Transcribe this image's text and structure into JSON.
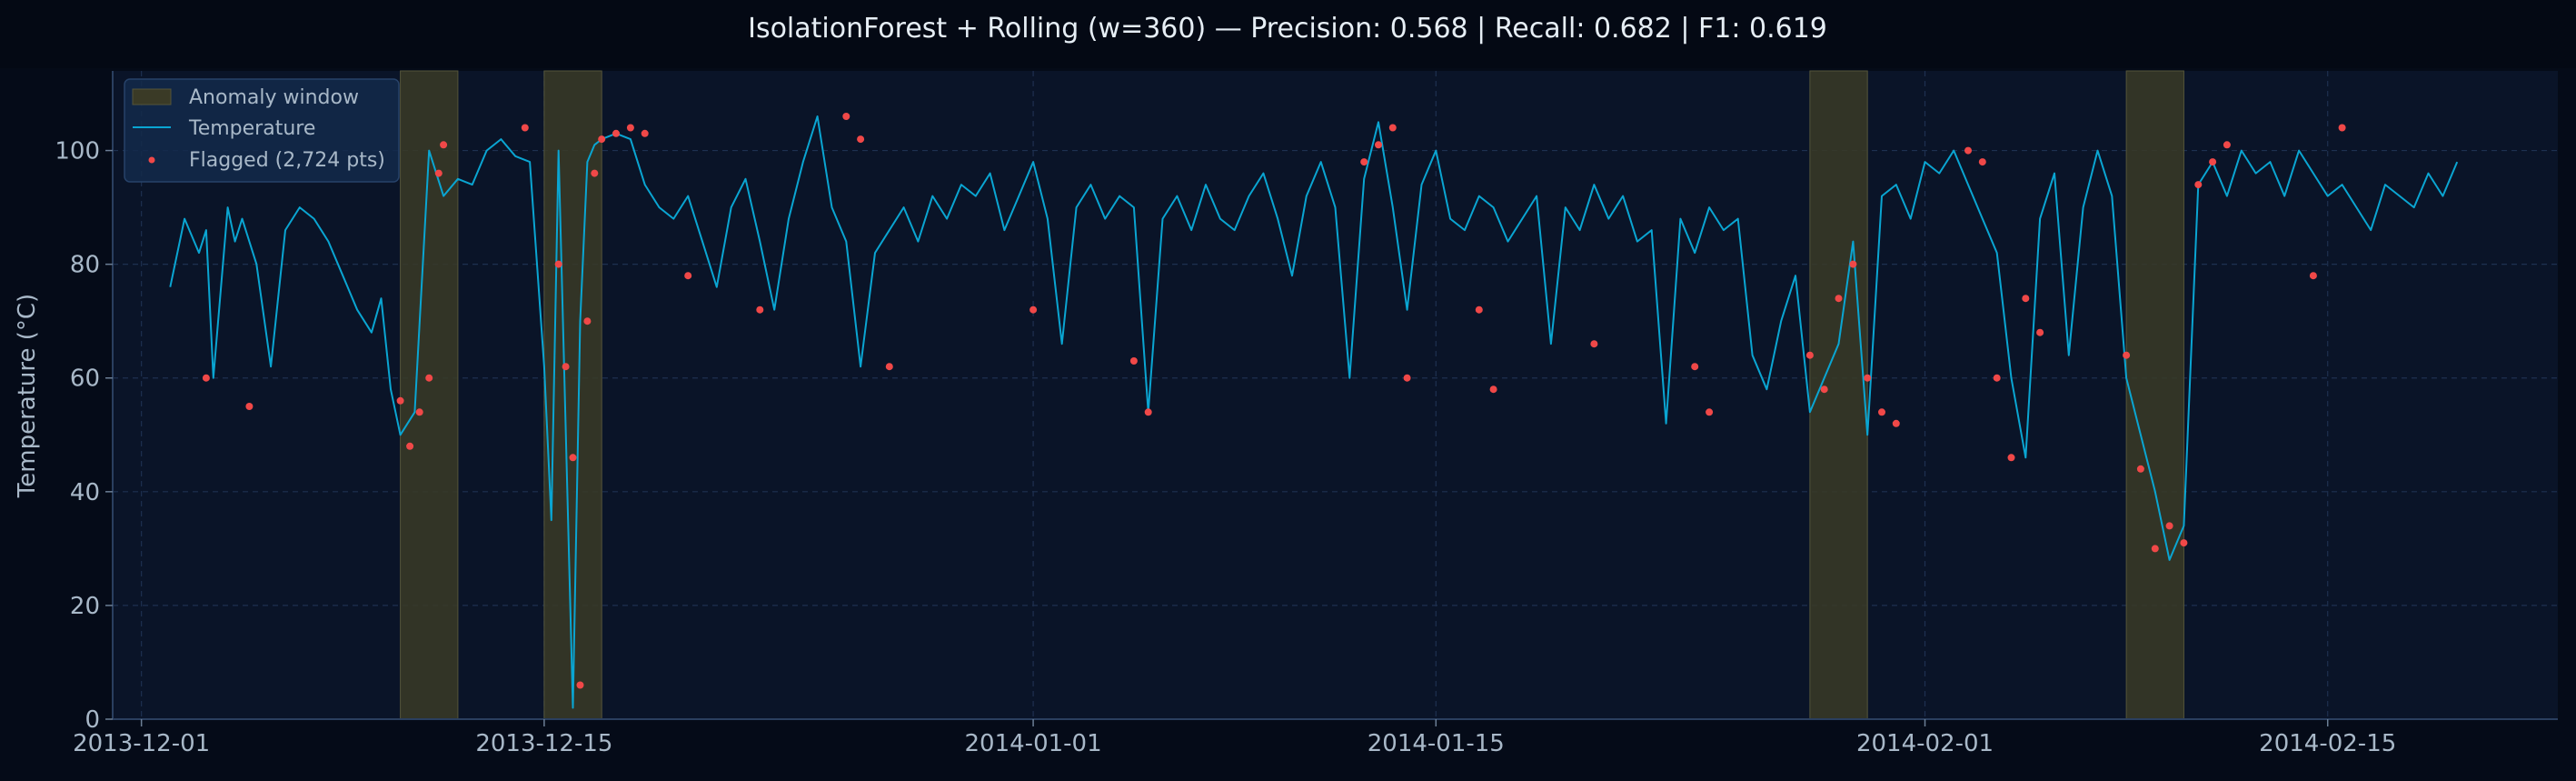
{
  "chart_data": {
    "type": "line",
    "title": "IsolationForest + Rolling (w=360)  —  Precision: 0.568  |  Recall: 0.682  |  F1: 0.619",
    "xlabel": "",
    "ylabel": "Temperature (°C)",
    "xlim": [
      "2013-11-30",
      "2014-02-23"
    ],
    "ylim": [
      0,
      114
    ],
    "x_ticks": [
      "2013-12-01",
      "2013-12-15",
      "2014-01-01",
      "2014-01-15",
      "2014-02-01",
      "2014-02-15"
    ],
    "y_ticks": [
      0,
      20,
      40,
      60,
      80,
      100
    ],
    "grid": true,
    "legend_position": "top-left",
    "legend": {
      "window": "Anomaly window",
      "line": "Temperature",
      "flagged": "Flagged (2,724 pts)"
    },
    "colors": {
      "background": "#050b18",
      "plot_background": "#0a1428",
      "temperature": "#0aa5d2",
      "flagged": "#f04848",
      "window_fill": "#3a3a26",
      "axis": "#2a3f5f",
      "tick_text": "#a8b8c8",
      "title_text": "#e6eef5"
    },
    "anomaly_windows": [
      [
        "2013-12-10",
        "2013-12-12"
      ],
      [
        "2013-12-15",
        "2013-12-17"
      ],
      [
        "2014-01-28",
        "2014-01-30"
      ],
      [
        "2014-02-08",
        "2014-02-10"
      ]
    ],
    "series": [
      {
        "name": "Temperature",
        "kind": "line",
        "x": [
          "2013-12-02 00:00",
          "2013-12-02 12:00",
          "2013-12-03 00:00",
          "2013-12-03 06:00",
          "2013-12-03 12:00",
          "2013-12-04 00:00",
          "2013-12-04 06:00",
          "2013-12-04 12:00",
          "2013-12-05 00:00",
          "2013-12-05 12:00",
          "2013-12-06 00:00",
          "2013-12-06 12:00",
          "2013-12-07 00:00",
          "2013-12-07 12:00",
          "2013-12-08 00:00",
          "2013-12-08 12:00",
          "2013-12-09 00:00",
          "2013-12-09 08:00",
          "2013-12-09 16:00",
          "2013-12-10 00:00",
          "2013-12-10 12:00",
          "2013-12-11 00:00",
          "2013-12-11 12:00",
          "2013-12-12 00:00",
          "2013-12-12 12:00",
          "2013-12-13 00:00",
          "2013-12-13 12:00",
          "2013-12-14 00:00",
          "2013-12-14 12:00",
          "2013-12-15 00:00",
          "2013-12-15 06:00",
          "2013-12-15 12:00",
          "2013-12-16 00:00",
          "2013-12-16 06:00",
          "2013-12-16 12:00",
          "2013-12-16 18:00",
          "2013-12-17 00:00",
          "2013-12-17 12:00",
          "2013-12-18 00:00",
          "2013-12-18 12:00",
          "2013-12-19 00:00",
          "2013-12-19 12:00",
          "2013-12-20 00:00",
          "2013-12-20 12:00",
          "2013-12-21 00:00",
          "2013-12-21 12:00",
          "2013-12-22 00:00",
          "2013-12-22 12:00",
          "2013-12-23 00:00",
          "2013-12-23 12:00",
          "2013-12-24 00:00",
          "2013-12-24 12:00",
          "2013-12-25 00:00",
          "2013-12-25 12:00",
          "2013-12-26 00:00",
          "2013-12-26 12:00",
          "2013-12-27 00:00",
          "2013-12-27 12:00",
          "2013-12-28 00:00",
          "2013-12-28 12:00",
          "2013-12-29 00:00",
          "2013-12-29 12:00",
          "2013-12-30 00:00",
          "2013-12-30 12:00",
          "2013-12-31 00:00",
          "2013-12-31 12:00",
          "2014-01-01 00:00",
          "2014-01-01 12:00",
          "2014-01-02 00:00",
          "2014-01-02 12:00",
          "2014-01-03 00:00",
          "2014-01-03 12:00",
          "2014-01-04 00:00",
          "2014-01-04 12:00",
          "2014-01-05 00:00",
          "2014-01-05 12:00",
          "2014-01-06 00:00",
          "2014-01-06 12:00",
          "2014-01-07 00:00",
          "2014-01-07 12:00",
          "2014-01-08 00:00",
          "2014-01-08 12:00",
          "2014-01-09 00:00",
          "2014-01-09 12:00",
          "2014-01-10 00:00",
          "2014-01-10 12:00",
          "2014-01-11 00:00",
          "2014-01-11 12:00",
          "2014-01-12 00:00",
          "2014-01-12 12:00",
          "2014-01-13 00:00",
          "2014-01-13 12:00",
          "2014-01-14 00:00",
          "2014-01-14 12:00",
          "2014-01-15 00:00",
          "2014-01-15 12:00",
          "2014-01-16 00:00",
          "2014-01-16 12:00",
          "2014-01-17 00:00",
          "2014-01-17 12:00",
          "2014-01-18 00:00",
          "2014-01-18 12:00",
          "2014-01-19 00:00",
          "2014-01-19 12:00",
          "2014-01-20 00:00",
          "2014-01-20 12:00",
          "2014-01-21 00:00",
          "2014-01-21 12:00",
          "2014-01-22 00:00",
          "2014-01-22 12:00",
          "2014-01-23 00:00",
          "2014-01-23 12:00",
          "2014-01-24 00:00",
          "2014-01-24 12:00",
          "2014-01-25 00:00",
          "2014-01-25 12:00",
          "2014-01-26 00:00",
          "2014-01-26 12:00",
          "2014-01-27 00:00",
          "2014-01-27 12:00",
          "2014-01-28 00:00",
          "2014-01-28 12:00",
          "2014-01-29 00:00",
          "2014-01-29 12:00",
          "2014-01-30 00:00",
          "2014-01-30 12:00",
          "2014-01-31 00:00",
          "2014-01-31 12:00",
          "2014-02-01 00:00",
          "2014-02-01 12:00",
          "2014-02-02 00:00",
          "2014-02-02 12:00",
          "2014-02-03 00:00",
          "2014-02-03 12:00",
          "2014-02-04 00:00",
          "2014-02-04 12:00",
          "2014-02-05 00:00",
          "2014-02-05 12:00",
          "2014-02-06 00:00",
          "2014-02-06 12:00",
          "2014-02-07 00:00",
          "2014-02-07 12:00",
          "2014-02-08 00:00",
          "2014-02-08 12:00",
          "2014-02-09 00:00",
          "2014-02-09 12:00",
          "2014-02-10 00:00",
          "2014-02-10 12:00",
          "2014-02-11 00:00",
          "2014-02-11 12:00",
          "2014-02-12 00:00",
          "2014-02-12 12:00",
          "2014-02-13 00:00",
          "2014-02-13 12:00",
          "2014-02-14 00:00",
          "2014-02-14 12:00",
          "2014-02-15 00:00",
          "2014-02-15 12:00",
          "2014-02-16 00:00",
          "2014-02-16 12:00",
          "2014-02-17 00:00",
          "2014-02-17 12:00",
          "2014-02-18 00:00",
          "2014-02-18 12:00",
          "2014-02-19 00:00",
          "2014-02-19 12:00"
        ],
        "y": [
          76,
          88,
          82,
          86,
          60,
          90,
          84,
          88,
          80,
          62,
          86,
          90,
          88,
          84,
          78,
          72,
          68,
          74,
          58,
          50,
          54,
          100,
          92,
          95,
          94,
          100,
          102,
          99,
          98,
          62,
          35,
          100,
          2,
          70,
          98,
          101,
          102,
          103,
          102,
          94,
          90,
          88,
          92,
          84,
          76,
          90,
          95,
          84,
          72,
          88,
          98,
          106,
          90,
          84,
          62,
          82,
          86,
          90,
          84,
          92,
          88,
          94,
          92,
          96,
          86,
          92,
          98,
          88,
          66,
          90,
          94,
          88,
          92,
          90,
          54,
          88,
          92,
          86,
          94,
          88,
          86,
          92,
          96,
          88,
          78,
          92,
          98,
          90,
          60,
          95,
          105,
          90,
          72,
          94,
          100,
          88,
          86,
          92,
          90,
          84,
          88,
          92,
          66,
          90,
          86,
          94,
          88,
          92,
          84,
          86,
          52,
          88,
          82,
          90,
          86,
          88,
          64,
          58,
          70,
          78,
          54,
          60,
          66,
          84,
          50,
          92,
          94,
          88,
          98,
          96,
          100,
          94,
          88,
          82,
          60,
          46,
          88,
          96,
          64,
          90,
          100,
          92,
          60,
          50,
          40,
          28,
          34,
          94,
          98,
          92,
          100,
          96,
          98,
          92,
          100,
          96,
          92,
          94,
          90,
          86,
          94,
          92,
          90,
          96,
          92,
          98
        ]
      },
      {
        "name": "Flagged (2,724 pts)",
        "kind": "scatter",
        "x": [
          "2013-12-03 06:00",
          "2013-12-04 18:00",
          "2013-12-10 00:00",
          "2013-12-10 08:00",
          "2013-12-10 16:00",
          "2013-12-11 00:00",
          "2013-12-11 08:00",
          "2013-12-11 12:00",
          "2013-12-14 08:00",
          "2013-12-15 12:00",
          "2013-12-15 18:00",
          "2013-12-16 00:00",
          "2013-12-16 06:00",
          "2013-12-16 12:00",
          "2013-12-16 18:00",
          "2013-12-17 00:00",
          "2013-12-17 12:00",
          "2013-12-18 00:00",
          "2013-12-18 12:00",
          "2013-12-20 00:00",
          "2013-12-22 12:00",
          "2013-12-25 12:00",
          "2013-12-26 00:00",
          "2013-12-27 00:00",
          "2014-01-01 00:00",
          "2014-01-04 12:00",
          "2014-01-05 00:00",
          "2014-01-12 12:00",
          "2014-01-13 00:00",
          "2014-01-13 12:00",
          "2014-01-14 00:00",
          "2014-01-16 12:00",
          "2014-01-17 00:00",
          "2014-01-20 12:00",
          "2014-01-24 00:00",
          "2014-01-24 12:00",
          "2014-01-28 00:00",
          "2014-01-28 12:00",
          "2014-01-29 00:00",
          "2014-01-29 12:00",
          "2014-01-30 00:00",
          "2014-01-30 12:00",
          "2014-01-31 00:00",
          "2014-02-02 12:00",
          "2014-02-03 00:00",
          "2014-02-03 12:00",
          "2014-02-04 00:00",
          "2014-02-04 12:00",
          "2014-02-05 00:00",
          "2014-02-08 00:00",
          "2014-02-08 12:00",
          "2014-02-09 00:00",
          "2014-02-09 12:00",
          "2014-02-10 00:00",
          "2014-02-10 12:00",
          "2014-02-11 00:00",
          "2014-02-11 12:00",
          "2014-02-14 12:00",
          "2014-02-15 12:00"
        ],
        "y": [
          60,
          55,
          56,
          48,
          54,
          60,
          96,
          101,
          104,
          80,
          62,
          46,
          6,
          70,
          96,
          102,
          103,
          104,
          103,
          78,
          72,
          106,
          102,
          62,
          72,
          63,
          54,
          98,
          101,
          104,
          60,
          72,
          58,
          66,
          62,
          54,
          64,
          58,
          74,
          80,
          60,
          54,
          52,
          100,
          98,
          60,
          46,
          74,
          68,
          64,
          44,
          30,
          34,
          31,
          94,
          98,
          101,
          78,
          104
        ]
      }
    ]
  }
}
